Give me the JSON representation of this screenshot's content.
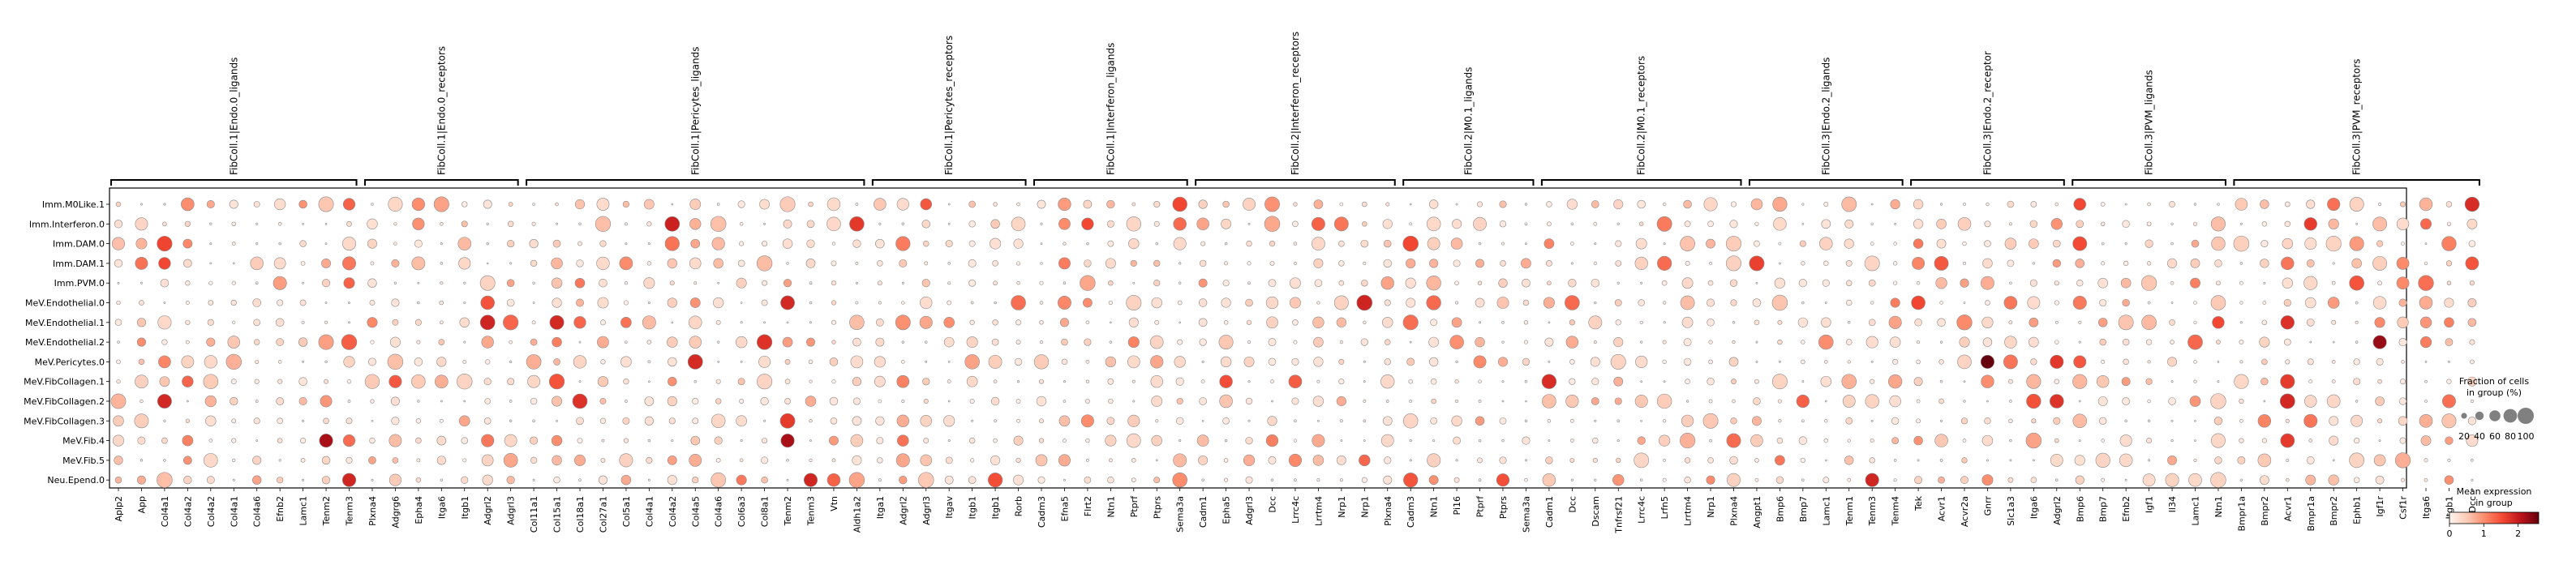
{
  "chart_data": {
    "type": "dotplot",
    "title": "",
    "xlabel": "",
    "ylabel": "",
    "rows": [
      "Imm.M0Like.1",
      "Imm.Interferon.0",
      "Imm.DAM.0",
      "Imm.DAM.1",
      "Imm.PVM.0",
      "MeV.Endothelial.0",
      "MeV.Endothelial.1",
      "MeV.Endothelial.2",
      "MeV.Pericytes.0",
      "MeV.FibCollagen.1",
      "MeV.FibCollagen.2",
      "MeV.FibCollagen.3",
      "MeV.Fib.4",
      "MeV.Fib.5",
      "Neu.Epend.0"
    ],
    "groups": [
      {
        "name": "FibColl.1|Endo.0_ligands",
        "genes": [
          "Aplp2",
          "App",
          "Col4a1",
          "Col4a2",
          "Col4a2",
          "Col4a1",
          "Col4a6",
          "Efnb2",
          "Lamc1",
          "Tenm2",
          "Tenm3"
        ]
      },
      {
        "name": "FibColl.1|Endo.0_receptors",
        "genes": [
          "Plxna4",
          "Adgrg6",
          "Epha4",
          "Itga6",
          "Itgb1",
          "Adgrl2",
          "Adgrl3"
        ]
      },
      {
        "name": "FibColl.1|Pericytes_ligands",
        "genes": [
          "Col11a1",
          "Col15a1",
          "Col18a1",
          "Col27a1",
          "Col5a1",
          "Col4a1",
          "Col4a2",
          "Col4a5",
          "Col4a6",
          "Col6a3",
          "Col8a1",
          "Tenm2",
          "Tenm3",
          "Vtn",
          "Aldh1a2"
        ]
      },
      {
        "name": "FibColl.1|Pericytes_receptors",
        "genes": [
          "Itga1",
          "Adgrl2",
          "Adgrl3",
          "Itgav",
          "Itgb1",
          "Itgb1",
          "Rorb"
        ]
      },
      {
        "name": "FibColl.1|Interferon_ligands",
        "genes": [
          "Cadm3",
          "Efna5",
          "Flrt2",
          "Ntn1",
          "Ptprf",
          "Ptprs",
          "Sema3a"
        ]
      },
      {
        "name": "FibColl.2|Interferon_receptors",
        "genes": [
          "Cadm1",
          "Epha5",
          "Adgrl3",
          "Dcc",
          "Lrrc4c",
          "Lrrtm4",
          "Nrp1",
          "Nrp1",
          "Plxna4"
        ]
      },
      {
        "name": "FibColl.2|M0.1_ligands",
        "genes": [
          "Cadm3",
          "Ntn1",
          "Pi16",
          "Ptprf",
          "Ptprs",
          "Sema3a"
        ]
      },
      {
        "name": "FibColl.2|M0.1_receptors",
        "genes": [
          "Cadm1",
          "Dcc",
          "Dscam",
          "Tnfrsf21",
          "Lrrc4c",
          "Lrfn5",
          "Lrrtm4",
          "Nrp1",
          "Plxna4"
        ]
      },
      {
        "name": "FibColl.3|Endo.2_ligands",
        "genes": [
          "Angpt1",
          "Bmp6",
          "Bmp7",
          "Lamc1",
          "Tenm1",
          "Tenm3",
          "Tenm4"
        ]
      },
      {
        "name": "FibColl.3|Endo.2_receptor",
        "genes": [
          "Tek",
          "Acvr1",
          "Acvr2a",
          "Gnrr",
          "Slc1a3",
          "Itga6",
          "Adgrl2"
        ]
      },
      {
        "name": "FibColl.3|PVM_ligands",
        "genes": [
          "Bmp6",
          "Bmp7",
          "Efnb2",
          "Igf1",
          "Il34",
          "Lamc1",
          "Ntn1"
        ]
      },
      {
        "name": "FibColl.3|PVM_receptors",
        "genes": [
          "Bmpr1a",
          "Bmpr2",
          "Acvr1",
          "Bmpr1a",
          "Bmpr2",
          "Ephb1",
          "Igf1r",
          "Csf1r",
          "Itga6",
          "Itgb1",
          "Dcc"
        ]
      }
    ],
    "hotspots": [
      {
        "row": "MeV.Pericytes.0",
        "gene": "Gnrr",
        "value": 2.6
      },
      {
        "row": "MeV.Fib.4",
        "gene": "Tenm2",
        "value": 2.2
      },
      {
        "row": "MeV.Endothelial.2",
        "gene": "Igf1r",
        "value": 2.3
      },
      {
        "row": "MeV.Fib.4",
        "gene": "Tenm2 (pericyte)",
        "value": 2.1
      },
      {
        "row": "Neu.Epend.0",
        "gene": "Tenm3",
        "value": 1.9
      }
    ],
    "legend_size": {
      "title": "Fraction of cells\nin group (%)",
      "ticks": [
        "20",
        "40",
        "60",
        "80",
        "100"
      ]
    },
    "legend_color": {
      "title": "Mean expression\nin group",
      "ticks": [
        "0",
        "1",
        "2"
      ],
      "range": [
        0,
        2.6
      ],
      "colormap": [
        "#fff5f0",
        "#fdcab5",
        "#fc8a6a",
        "#f24732",
        "#bc141a",
        "#67000d"
      ]
    }
  }
}
